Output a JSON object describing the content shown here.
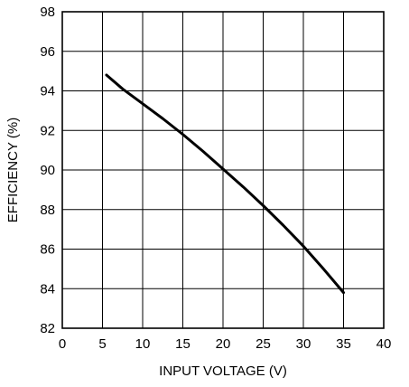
{
  "chart_data": {
    "type": "line",
    "title": "",
    "xlabel": "INPUT VOLTAGE (V)",
    "ylabel": "EFFICIENCY (%)",
    "xlim": [
      0,
      40
    ],
    "ylim": [
      82,
      98
    ],
    "xticks": [
      0,
      5,
      10,
      15,
      20,
      25,
      30,
      35,
      40
    ],
    "yticks": [
      82,
      84,
      86,
      88,
      90,
      92,
      94,
      96,
      98
    ],
    "grid": true,
    "legend": "none",
    "series": [
      {
        "color": "#000000",
        "x": [
          5.5,
          7.5,
          10,
          12.5,
          15,
          17.5,
          20,
          22.5,
          25,
          27.5,
          30,
          32.5,
          35
        ],
        "y": [
          94.8,
          94.1,
          93.35,
          92.6,
          91.8,
          90.95,
          90.05,
          89.15,
          88.2,
          87.2,
          86.15,
          85.0,
          83.8
        ]
      }
    ]
  }
}
